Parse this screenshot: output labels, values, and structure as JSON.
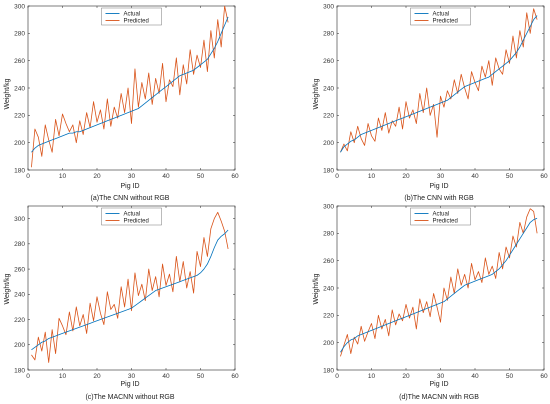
{
  "colors": {
    "actual": "#0072BD",
    "predicted": "#D95319",
    "axis": "#262626"
  },
  "chart_data": [
    {
      "type": "line",
      "caption": "(a)The CNN without RGB",
      "xlabel": "Pig ID",
      "ylabel": "Weight/kg",
      "xlim": [
        0,
        60
      ],
      "ylim": [
        180,
        300
      ],
      "xticks": [
        0,
        10,
        20,
        30,
        40,
        50,
        60
      ],
      "yticks": [
        180,
        200,
        220,
        240,
        260,
        280,
        300
      ],
      "legend_position": "top-center",
      "series": [
        {
          "name": "Actual",
          "x": [
            1,
            2,
            3,
            4,
            5,
            6,
            7,
            8,
            9,
            10,
            11,
            12,
            13,
            14,
            15,
            16,
            17,
            18,
            19,
            20,
            21,
            22,
            23,
            24,
            25,
            26,
            27,
            28,
            29,
            30,
            31,
            32,
            33,
            34,
            35,
            36,
            37,
            38,
            39,
            40,
            41,
            42,
            43,
            44,
            45,
            46,
            47,
            48,
            49,
            50,
            51,
            52,
            53,
            54,
            55,
            56,
            57,
            58
          ],
          "values": [
            193,
            196,
            198,
            199,
            200,
            201,
            202,
            203,
            204,
            205,
            206,
            207,
            207,
            208,
            208,
            209,
            210,
            211,
            212,
            213,
            214,
            215,
            216,
            217,
            218,
            219,
            220,
            221,
            222,
            223,
            224,
            225,
            227,
            229,
            231,
            233,
            235,
            237,
            239,
            241,
            243,
            245,
            247,
            249,
            250,
            251,
            252,
            253,
            255,
            257,
            259,
            261,
            265,
            269,
            274,
            280,
            286,
            292
          ]
        },
        {
          "name": "Predicted",
          "x": [
            1,
            2,
            3,
            4,
            5,
            6,
            7,
            8,
            9,
            10,
            11,
            12,
            13,
            14,
            15,
            16,
            17,
            18,
            19,
            20,
            21,
            22,
            23,
            24,
            25,
            26,
            27,
            28,
            29,
            30,
            31,
            32,
            33,
            34,
            35,
            36,
            37,
            38,
            39,
            40,
            41,
            42,
            43,
            44,
            45,
            46,
            47,
            48,
            49,
            50,
            51,
            52,
            53,
            54,
            55,
            56,
            57,
            58
          ],
          "values": [
            182,
            210,
            204,
            190,
            213,
            202,
            193,
            217,
            205,
            221,
            214,
            208,
            213,
            200,
            216,
            206,
            222,
            211,
            230,
            215,
            224,
            210,
            232,
            212,
            226,
            218,
            236,
            222,
            240,
            214,
            254,
            226,
            244,
            232,
            251,
            228,
            247,
            236,
            258,
            230,
            246,
            241,
            262,
            235,
            257,
            243,
            268,
            250,
            264,
            255,
            275,
            252,
            282,
            262,
            290,
            270,
            300,
            288
          ]
        }
      ]
    },
    {
      "type": "line",
      "caption": "(b)The CNN with RGB",
      "xlabel": "Pig ID",
      "ylabel": "Weight/kg",
      "xlim": [
        0,
        60
      ],
      "ylim": [
        180,
        300
      ],
      "xticks": [
        0,
        10,
        20,
        30,
        40,
        50,
        60
      ],
      "yticks": [
        180,
        200,
        220,
        240,
        260,
        280,
        300
      ],
      "legend_position": "top-center",
      "series": [
        {
          "name": "Actual",
          "x": [
            1,
            2,
            3,
            4,
            5,
            6,
            7,
            8,
            9,
            10,
            11,
            12,
            13,
            14,
            15,
            16,
            17,
            18,
            19,
            20,
            21,
            22,
            23,
            24,
            25,
            26,
            27,
            28,
            29,
            30,
            31,
            32,
            33,
            34,
            35,
            36,
            37,
            38,
            39,
            40,
            41,
            42,
            43,
            44,
            45,
            46,
            47,
            48,
            49,
            50,
            51,
            52,
            53,
            54,
            55,
            56,
            57,
            58
          ],
          "values": [
            193,
            197,
            199,
            201,
            202,
            204,
            206,
            207,
            208,
            209,
            210,
            211,
            212,
            213,
            214,
            215,
            216,
            217,
            218,
            219,
            220,
            221,
            222,
            223,
            224,
            225,
            226,
            227,
            228,
            229,
            230,
            231,
            233,
            235,
            237,
            239,
            241,
            242,
            243,
            244,
            245,
            246,
            247,
            248,
            250,
            252,
            254,
            256,
            258,
            260,
            263,
            266,
            270,
            275,
            280,
            285,
            290,
            293
          ]
        },
        {
          "name": "Predicted",
          "x": [
            1,
            2,
            3,
            4,
            5,
            6,
            7,
            8,
            9,
            10,
            11,
            12,
            13,
            14,
            15,
            16,
            17,
            18,
            19,
            20,
            21,
            22,
            23,
            24,
            25,
            26,
            27,
            28,
            29,
            30,
            31,
            32,
            33,
            34,
            35,
            36,
            37,
            38,
            39,
            40,
            41,
            42,
            43,
            44,
            45,
            46,
            47,
            48,
            49,
            50,
            51,
            52,
            53,
            54,
            55,
            56,
            57,
            58
          ],
          "values": [
            193,
            199,
            194,
            208,
            200,
            212,
            203,
            198,
            214,
            205,
            201,
            218,
            209,
            222,
            207,
            216,
            212,
            226,
            210,
            230,
            218,
            224,
            214,
            236,
            222,
            240,
            220,
            228,
            204,
            234,
            226,
            238,
            232,
            246,
            236,
            250,
            240,
            232,
            252,
            244,
            238,
            256,
            248,
            260,
            242,
            262,
            254,
            250,
            268,
            258,
            278,
            262,
            282,
            270,
            295,
            280,
            298,
            290
          ]
        }
      ]
    },
    {
      "type": "line",
      "caption": "(c)The MACNN without RGB",
      "xlabel": "Pig ID",
      "ylabel": "Weight/kg",
      "xlim": [
        0,
        60
      ],
      "ylim": [
        180,
        310
      ],
      "xticks": [
        0,
        10,
        20,
        30,
        40,
        50,
        60
      ],
      "yticks": [
        180,
        200,
        220,
        240,
        260,
        280,
        300
      ],
      "legend_position": "top-center",
      "series": [
        {
          "name": "Actual",
          "x": [
            1,
            2,
            3,
            4,
            5,
            6,
            7,
            8,
            9,
            10,
            11,
            12,
            13,
            14,
            15,
            16,
            17,
            18,
            19,
            20,
            21,
            22,
            23,
            24,
            25,
            26,
            27,
            28,
            29,
            30,
            31,
            32,
            33,
            34,
            35,
            36,
            37,
            38,
            39,
            40,
            41,
            42,
            43,
            44,
            45,
            46,
            47,
            48,
            49,
            50,
            51,
            52,
            53,
            54,
            55,
            56,
            57,
            58
          ],
          "values": [
            196,
            198,
            200,
            202,
            203,
            205,
            206,
            207,
            208,
            209,
            210,
            211,
            212,
            213,
            214,
            215,
            216,
            217,
            218,
            219,
            220,
            221,
            222,
            223,
            224,
            225,
            226,
            227,
            228,
            229,
            231,
            233,
            235,
            237,
            239,
            241,
            243,
            244,
            245,
            246,
            247,
            248,
            249,
            250,
            251,
            252,
            253,
            254,
            255,
            257,
            260,
            264,
            270,
            277,
            283,
            286,
            288,
            291
          ]
        },
        {
          "name": "Predicted",
          "x": [
            1,
            2,
            3,
            4,
            5,
            6,
            7,
            8,
            9,
            10,
            11,
            12,
            13,
            14,
            15,
            16,
            17,
            18,
            19,
            20,
            21,
            22,
            23,
            24,
            25,
            26,
            27,
            28,
            29,
            30,
            31,
            32,
            33,
            34,
            35,
            36,
            37,
            38,
            39,
            40,
            41,
            42,
            43,
            44,
            45,
            46,
            47,
            48,
            49,
            50,
            51,
            52,
            53,
            54,
            55,
            56,
            57,
            58
          ],
          "values": [
            192,
            188,
            206,
            195,
            210,
            186,
            212,
            193,
            221,
            215,
            208,
            226,
            211,
            230,
            215,
            224,
            209,
            233,
            219,
            238,
            225,
            216,
            242,
            228,
            232,
            221,
            246,
            230,
            252,
            227,
            257,
            239,
            248,
            235,
            260,
            243,
            254,
            238,
            264,
            247,
            256,
            242,
            270,
            250,
            266,
            245,
            258,
            241,
            274,
            262,
            285,
            270,
            292,
            300,
            305,
            298,
            290,
            276
          ]
        }
      ]
    },
    {
      "type": "line",
      "caption": "(d)The MACNN with RGB",
      "xlabel": "Pig ID",
      "ylabel": "Weight/kg",
      "xlim": [
        0,
        60
      ],
      "ylim": [
        180,
        300
      ],
      "xticks": [
        0,
        10,
        20,
        30,
        40,
        50,
        60
      ],
      "yticks": [
        180,
        200,
        220,
        240,
        260,
        280,
        300
      ],
      "legend_position": "top-center",
      "series": [
        {
          "name": "Actual",
          "x": [
            1,
            2,
            3,
            4,
            5,
            6,
            7,
            8,
            9,
            10,
            11,
            12,
            13,
            14,
            15,
            16,
            17,
            18,
            19,
            20,
            21,
            22,
            23,
            24,
            25,
            26,
            27,
            28,
            29,
            30,
            31,
            32,
            33,
            34,
            35,
            36,
            37,
            38,
            39,
            40,
            41,
            42,
            43,
            44,
            45,
            46,
            47,
            48,
            49,
            50,
            51,
            52,
            53,
            54,
            55,
            56,
            57,
            58
          ],
          "values": [
            193,
            197,
            200,
            202,
            203,
            205,
            206,
            207,
            208,
            209,
            210,
            211,
            212,
            213,
            214,
            215,
            216,
            217,
            218,
            219,
            220,
            221,
            222,
            223,
            224,
            225,
            226,
            227,
            228,
            229,
            230,
            232,
            234,
            236,
            238,
            240,
            242,
            243,
            244,
            245,
            246,
            247,
            248,
            249,
            250,
            252,
            254,
            257,
            260,
            264,
            268,
            272,
            276,
            280,
            284,
            288,
            290,
            291
          ]
        },
        {
          "name": "Predicted",
          "x": [
            1,
            2,
            3,
            4,
            5,
            6,
            7,
            8,
            9,
            10,
            11,
            12,
            13,
            14,
            15,
            16,
            17,
            18,
            19,
            20,
            21,
            22,
            23,
            24,
            25,
            26,
            27,
            28,
            29,
            30,
            31,
            32,
            33,
            34,
            35,
            36,
            37,
            38,
            39,
            40,
            41,
            42,
            43,
            44,
            45,
            46,
            47,
            48,
            49,
            50,
            51,
            52,
            53,
            54,
            55,
            56,
            57,
            58
          ],
          "values": [
            190,
            198,
            206,
            192,
            204,
            199,
            212,
            201,
            208,
            214,
            203,
            220,
            210,
            217,
            205,
            224,
            213,
            221,
            216,
            228,
            218,
            226,
            210,
            232,
            222,
            230,
            219,
            236,
            226,
            215,
            240,
            231,
            248,
            236,
            254,
            242,
            250,
            240,
            258,
            246,
            252,
            244,
            262,
            250,
            256,
            247,
            266,
            254,
            270,
            262,
            278,
            270,
            288,
            280,
            292,
            298,
            296,
            280
          ]
        }
      ]
    }
  ]
}
